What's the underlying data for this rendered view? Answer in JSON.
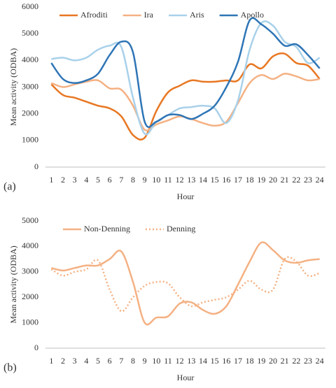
{
  "chart_data": [
    {
      "type": "line",
      "panel": "(a)",
      "x_label": "Hour",
      "y_label": "Mean activity (ODBA)",
      "categories": [
        "1",
        "2",
        "3",
        "4",
        "5",
        "6",
        "7",
        "8",
        "9",
        "10",
        "11",
        "12",
        "13",
        "14",
        "15",
        "16",
        "17",
        "18",
        "19",
        "20",
        "21",
        "22",
        "23",
        "24"
      ],
      "ylim": [
        0,
        6000
      ],
      "yticks": [
        0,
        1000,
        2000,
        3000,
        4000,
        5000,
        6000
      ],
      "grid": false,
      "legend": "top",
      "series": [
        {
          "name": "Afroditi",
          "color": "#e87722",
          "style": "solid",
          "values": [
            3100,
            2700,
            2600,
            2450,
            2300,
            2200,
            1900,
            1200,
            1100,
            2100,
            2800,
            3050,
            3250,
            3200,
            3200,
            3250,
            3250,
            3850,
            3700,
            4150,
            4250,
            3900,
            3800,
            3300
          ]
        },
        {
          "name": "Ira",
          "color": "#f4b183",
          "style": "solid",
          "values": [
            3150,
            3000,
            3100,
            3200,
            3250,
            2950,
            2900,
            2300,
            1400,
            1600,
            1750,
            1900,
            1800,
            1650,
            1550,
            1700,
            2400,
            3150,
            3450,
            3300,
            3500,
            3400,
            3250,
            3300
          ]
        },
        {
          "name": "Aris",
          "color": "#a9d1ea",
          "style": "solid",
          "values": [
            4050,
            4100,
            4000,
            4100,
            4400,
            4550,
            4500,
            2600,
            1250,
            1700,
            1950,
            2200,
            2250,
            2300,
            2200,
            1650,
            2500,
            4400,
            5400,
            5300,
            4700,
            4500,
            3900,
            4100
          ]
        },
        {
          "name": "Apollo",
          "color": "#2e75b6",
          "style": "solid",
          "values": [
            3900,
            3300,
            3150,
            3250,
            3500,
            4200,
            4700,
            4300,
            1700,
            1700,
            1950,
            1950,
            1800,
            2000,
            2300,
            3000,
            3950,
            5500,
            5350,
            5000,
            4550,
            4600,
            4200,
            3700
          ]
        }
      ]
    },
    {
      "type": "line",
      "panel": "(b)",
      "x_label": "Hour",
      "y_label": "Mean activity (ODBA)",
      "categories": [
        "1",
        "2",
        "3",
        "4",
        "5",
        "6",
        "7",
        "8",
        "9",
        "10",
        "11",
        "12",
        "13",
        "14",
        "15",
        "16",
        "17",
        "18",
        "19",
        "20",
        "21",
        "22",
        "23",
        "24"
      ],
      "ylim": [
        0,
        5000
      ],
      "yticks": [
        0,
        1000,
        2000,
        3000,
        4000,
        5000
      ],
      "grid": false,
      "legend": "top",
      "series": [
        {
          "name": "Non-Denning",
          "color": "#f4b183",
          "style": "solid",
          "values": [
            3150,
            3050,
            3150,
            3250,
            3250,
            3500,
            3800,
            2600,
            1000,
            1200,
            1250,
            1750,
            1800,
            1500,
            1350,
            1650,
            2500,
            3400,
            4150,
            3850,
            3450,
            3350,
            3450,
            3500
          ]
        },
        {
          "name": "Denning",
          "color": "#f4b183",
          "style": "dotted",
          "values": [
            3100,
            2850,
            3000,
            3100,
            3450,
            2300,
            1450,
            2000,
            2450,
            2600,
            2550,
            2000,
            1650,
            1800,
            1900,
            2000,
            2300,
            2650,
            2300,
            2300,
            3500,
            3400,
            2850,
            2950
          ]
        }
      ]
    }
  ]
}
